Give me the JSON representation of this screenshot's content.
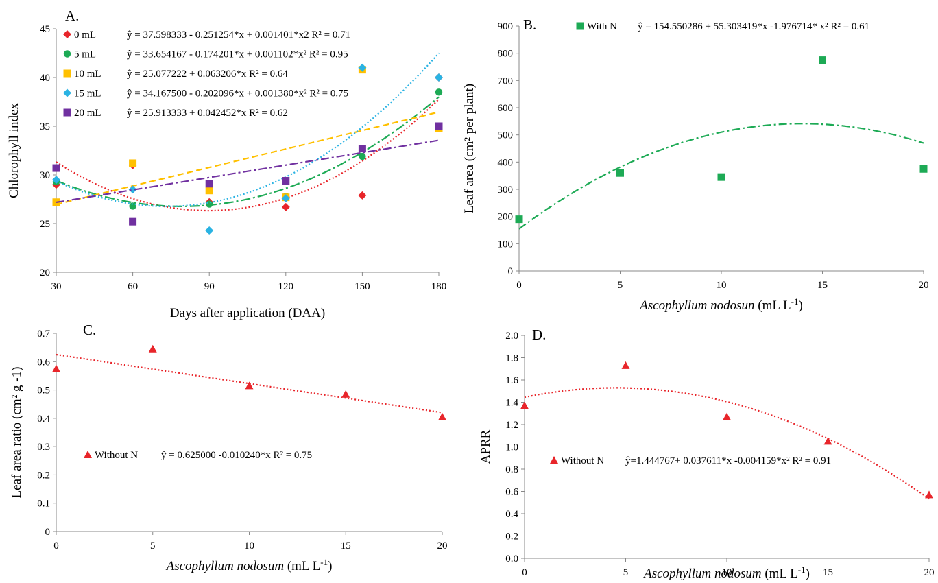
{
  "chart_data": [
    {
      "panel": "A.",
      "type": "scatter",
      "xlabel": "Days after application  (DAA)",
      "ylabel": "Chlorophyll  index",
      "x": [
        30,
        60,
        90,
        120,
        150,
        180
      ],
      "xticks": [
        "30",
        "60",
        "90",
        "120",
        "150",
        "180"
      ],
      "yticks": [
        "20",
        "25",
        "30",
        "35",
        "40",
        "45"
      ],
      "xlim": [
        30,
        180
      ],
      "ylim": [
        20,
        45
      ],
      "grid": false,
      "legend_position": "top-left",
      "series": [
        {
          "name": "0 mL",
          "marker": "diamond",
          "color": "#e8252a",
          "dash": "2,3",
          "values": [
            29.0,
            31.0,
            27.2,
            26.7,
            27.9,
            40.0
          ],
          "equation": "ŷ = 37.598333 - 0.251254*x + 0.001401*x2 R² = 0.71",
          "fit": [
            37.598333,
            -0.251254,
            0.001401
          ]
        },
        {
          "name": "5 mL",
          "marker": "circle",
          "color": "#1daa55",
          "dash": "14,4,3,4",
          "values": [
            29.3,
            26.8,
            27.0,
            27.8,
            31.9,
            38.5
          ],
          "equation": "ŷ = 33.654167 - 0.174201*x + 0.001102*x² R² = 0.95",
          "fit": [
            33.654167,
            -0.174201,
            0.001102
          ]
        },
        {
          "name": "10 mL",
          "marker": "square",
          "color": "#ffc000",
          "dash": "9,5",
          "values": [
            27.2,
            31.2,
            28.4,
            27.7,
            40.8,
            34.8
          ],
          "equation": "ŷ = 25.077222 + 0.063206*x R² = 0.64",
          "fit": [
            25.077222,
            0.063206,
            0
          ]
        },
        {
          "name": "15 mL",
          "marker": "diamond",
          "color": "#2ab3e3",
          "dash": "2,3",
          "values": [
            29.5,
            28.5,
            24.3,
            27.6,
            41.0,
            40.0
          ],
          "equation": "ŷ = 34.167500 - 0.202096*x + 0.001380*x² R² = 0.75",
          "fit": [
            34.1675,
            -0.202096,
            0.00138
          ]
        },
        {
          "name": "20 mL",
          "marker": "square",
          "color": "#7030a0",
          "dash": "12,4,3,4",
          "values": [
            30.7,
            25.2,
            29.1,
            29.4,
            32.7,
            35.0
          ],
          "equation": "ŷ = 25.913333 + 0.042452*x R² = 0.62",
          "fit": [
            25.913333,
            0.042452,
            0
          ]
        }
      ]
    },
    {
      "panel": "B.",
      "type": "scatter",
      "xlabel_italic": "Ascophyllum nodosun",
      "xlabel_rest": " (mL L",
      "xlabel_sup": "-1",
      "xlabel_end": ")",
      "ylabel": "Leaf area (cm² per plant)",
      "x": [
        0,
        5,
        10,
        15,
        20
      ],
      "xticks": [
        "0",
        "5",
        "10",
        "15",
        "20"
      ],
      "yticks": [
        "0",
        "100",
        "200",
        "300",
        "400",
        "500",
        "600",
        "700",
        "800",
        "900"
      ],
      "xlim": [
        0,
        20
      ],
      "ylim": [
        0,
        900
      ],
      "legend_position": "top",
      "series": [
        {
          "name": "With N",
          "marker": "square",
          "color": "#1daa55",
          "dash": "12,4,3,4",
          "values": [
            190,
            360,
            345,
            775,
            375
          ],
          "equation": "ŷ = 154.550286  + 55.303419*x  -1.976714* x²  R² = 0.61",
          "fit": [
            154.550286,
            55.303419,
            -1.976714
          ]
        }
      ]
    },
    {
      "panel": "C.",
      "type": "scatter",
      "xlabel_italic": "Ascophyllum nodosum",
      "xlabel_rest": " (mL L",
      "xlabel_sup": "-1",
      "xlabel_end": ")",
      "ylabel": "Leaf area ratio  (cm² g -1)",
      "x": [
        0,
        5,
        10,
        15,
        20
      ],
      "xticks": [
        "0",
        "5",
        "10",
        "15",
        "20"
      ],
      "yticks": [
        "0",
        "0.1",
        "0.2",
        "0.3",
        "0.4",
        "0.5",
        "0.6",
        "0.7"
      ],
      "xlim": [
        0,
        20
      ],
      "ylim": [
        0,
        0.7
      ],
      "legend_position": "bottom-left",
      "series": [
        {
          "name": "Without N",
          "marker": "triangle",
          "color": "#e8252a",
          "dash": "2,3",
          "values": [
            0.575,
            0.645,
            0.515,
            0.485,
            0.405
          ],
          "equation": "ŷ = 0.625000 -0.010240*x R² = 0.75",
          "fit": [
            0.625,
            -0.01024,
            0
          ]
        }
      ]
    },
    {
      "panel": "D.",
      "type": "scatter",
      "xlabel_italic": "Ascophyllum nodosum",
      "xlabel_rest": " (mL  L",
      "xlabel_sup": "-1",
      "xlabel_end": ")",
      "ylabel": "APRR",
      "x": [
        0,
        5,
        10,
        15,
        20
      ],
      "xticks": [
        "0",
        "5",
        "10",
        "15",
        "20"
      ],
      "yticks": [
        "0.0",
        "0.2",
        "0.4",
        "0.6",
        "0.8",
        "1.0",
        "1.2",
        "1.4",
        "1.6",
        "1.8",
        "2.0"
      ],
      "xlim": [
        0,
        20
      ],
      "ylim": [
        0,
        2.0
      ],
      "legend_position": "bottom-left",
      "series": [
        {
          "name": "Without N",
          "marker": "triangle",
          "color": "#e8252a",
          "dash": "2,3",
          "values": [
            1.37,
            1.73,
            1.27,
            1.05,
            0.57
          ],
          "equation": "ŷ=1.444767+ 0.037611*x -0.004159*x² R² = 0.91",
          "fit": [
            1.444767,
            0.037611,
            -0.004159
          ]
        }
      ]
    }
  ]
}
